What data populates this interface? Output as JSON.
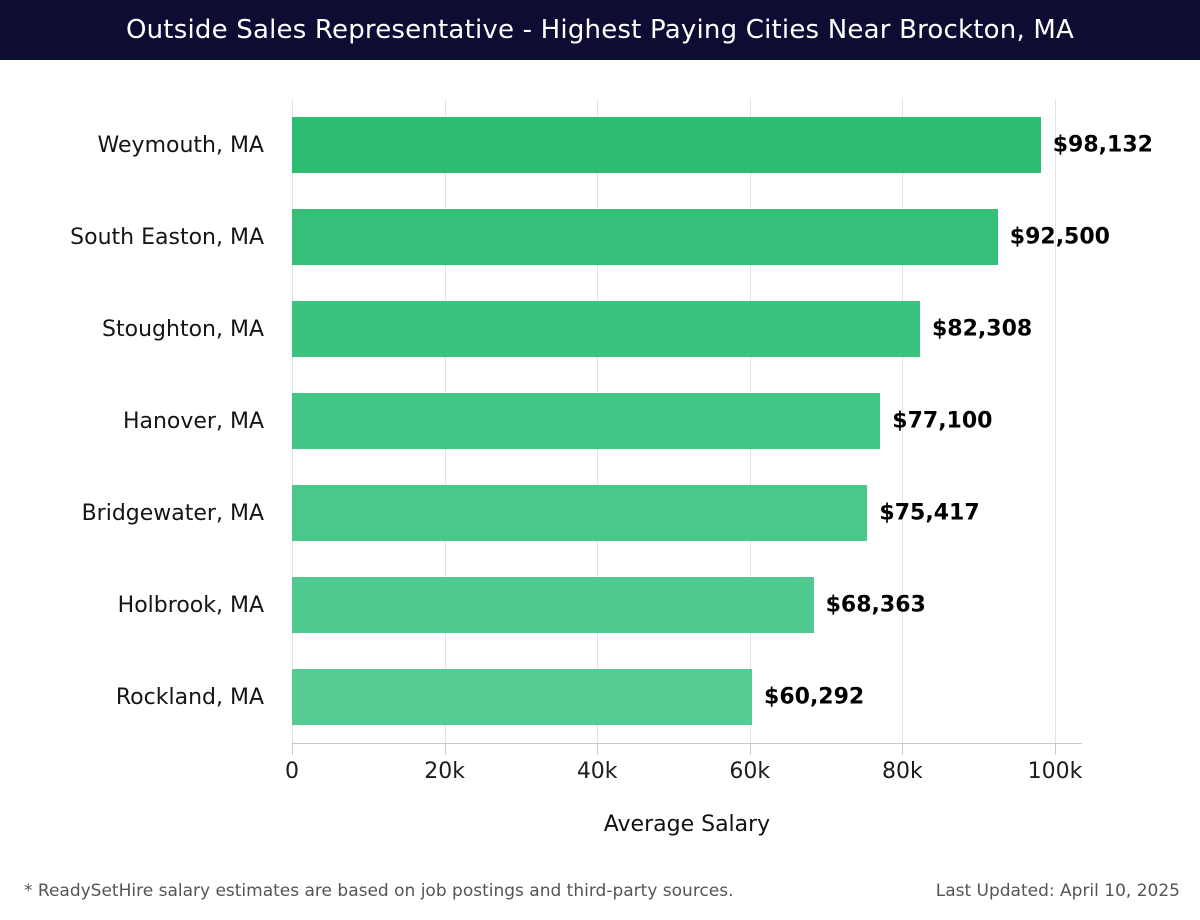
{
  "header": {
    "title": "Outside Sales Representative - Highest Paying Cities Near Brockton, MA",
    "background_color": "#0d0d33",
    "text_color": "#ffffff"
  },
  "chart_data": {
    "type": "bar",
    "orientation": "horizontal",
    "title": "Outside Sales Representative - Highest Paying Cities Near Brockton, MA",
    "categories": [
      "Weymouth, MA",
      "South Easton, MA",
      "Stoughton, MA",
      "Hanover, MA",
      "Bridgewater, MA",
      "Holbrook, MA",
      "Rockland, MA"
    ],
    "values": [
      98132,
      92500,
      82308,
      77100,
      75417,
      68363,
      60292
    ],
    "value_labels": [
      "$98,132",
      "$92,500",
      "$82,308",
      "$77,100",
      "$75,417",
      "$68,363",
      "$60,292"
    ],
    "bar_colors": [
      "#2ebc73",
      "#35bf79",
      "#3cc27f",
      "#43c585",
      "#4ac78a",
      "#50c990",
      "#56cc95"
    ],
    "xlabel": "Average Salary",
    "xlim": [
      0,
      100000
    ],
    "x_ticks": [
      {
        "value": 0,
        "label": "0"
      },
      {
        "value": 20000,
        "label": "20k"
      },
      {
        "value": 40000,
        "label": "40k"
      },
      {
        "value": 60000,
        "label": "60k"
      },
      {
        "value": 80000,
        "label": "80k"
      },
      {
        "value": 100000,
        "label": "100k"
      }
    ],
    "grid": "vertical-gridlines-on",
    "gridline_color": "#e3e3e3",
    "axis_line_color": "#c9c9c9"
  },
  "footer": {
    "disclaimer": "* ReadySetHire salary estimates are based on job postings and third-party sources.",
    "last_updated": "Last Updated: April 10, 2025"
  }
}
